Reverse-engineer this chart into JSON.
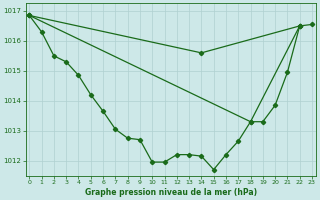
{
  "line1": {
    "x": [
      0,
      1,
      2,
      3,
      4,
      5,
      6,
      7,
      8,
      9,
      10,
      11,
      12,
      13,
      14,
      15,
      16,
      17,
      18,
      19,
      20,
      21,
      22,
      23
    ],
    "y": [
      1016.85,
      1016.3,
      1015.5,
      1015.3,
      1014.85,
      1014.2,
      1013.65,
      1013.05,
      1012.75,
      1012.7,
      1011.95,
      1011.95,
      1012.2,
      1012.2,
      1012.15,
      1011.7,
      1012.2,
      1012.65,
      1013.3,
      1013.3,
      1013.85,
      1014.95,
      1016.5,
      1016.55
    ]
  },
  "line2": {
    "x": [
      0,
      22
    ],
    "y": [
      1016.85,
      1016.5
    ]
  },
  "line2b": {
    "x": [
      0,
      14,
      22
    ],
    "y": [
      1016.85,
      1015.6,
      1016.5
    ]
  },
  "line3": {
    "x": [
      0,
      18,
      22
    ],
    "y": [
      1016.85,
      1013.3,
      1016.5
    ]
  },
  "line_color": "#1a6b1a",
  "bg_color": "#cde8e8",
  "grid_color": "#b0d0d0",
  "xlabel": "Graphe pression niveau de la mer (hPa)",
  "ylim": [
    1011.5,
    1017.25
  ],
  "xlim": [
    -0.3,
    23.3
  ],
  "yticks": [
    1012,
    1013,
    1014,
    1015,
    1016,
    1017
  ],
  "xticks": [
    0,
    1,
    2,
    3,
    4,
    5,
    6,
    7,
    8,
    9,
    10,
    11,
    12,
    13,
    14,
    15,
    16,
    17,
    18,
    19,
    20,
    21,
    22,
    23
  ]
}
